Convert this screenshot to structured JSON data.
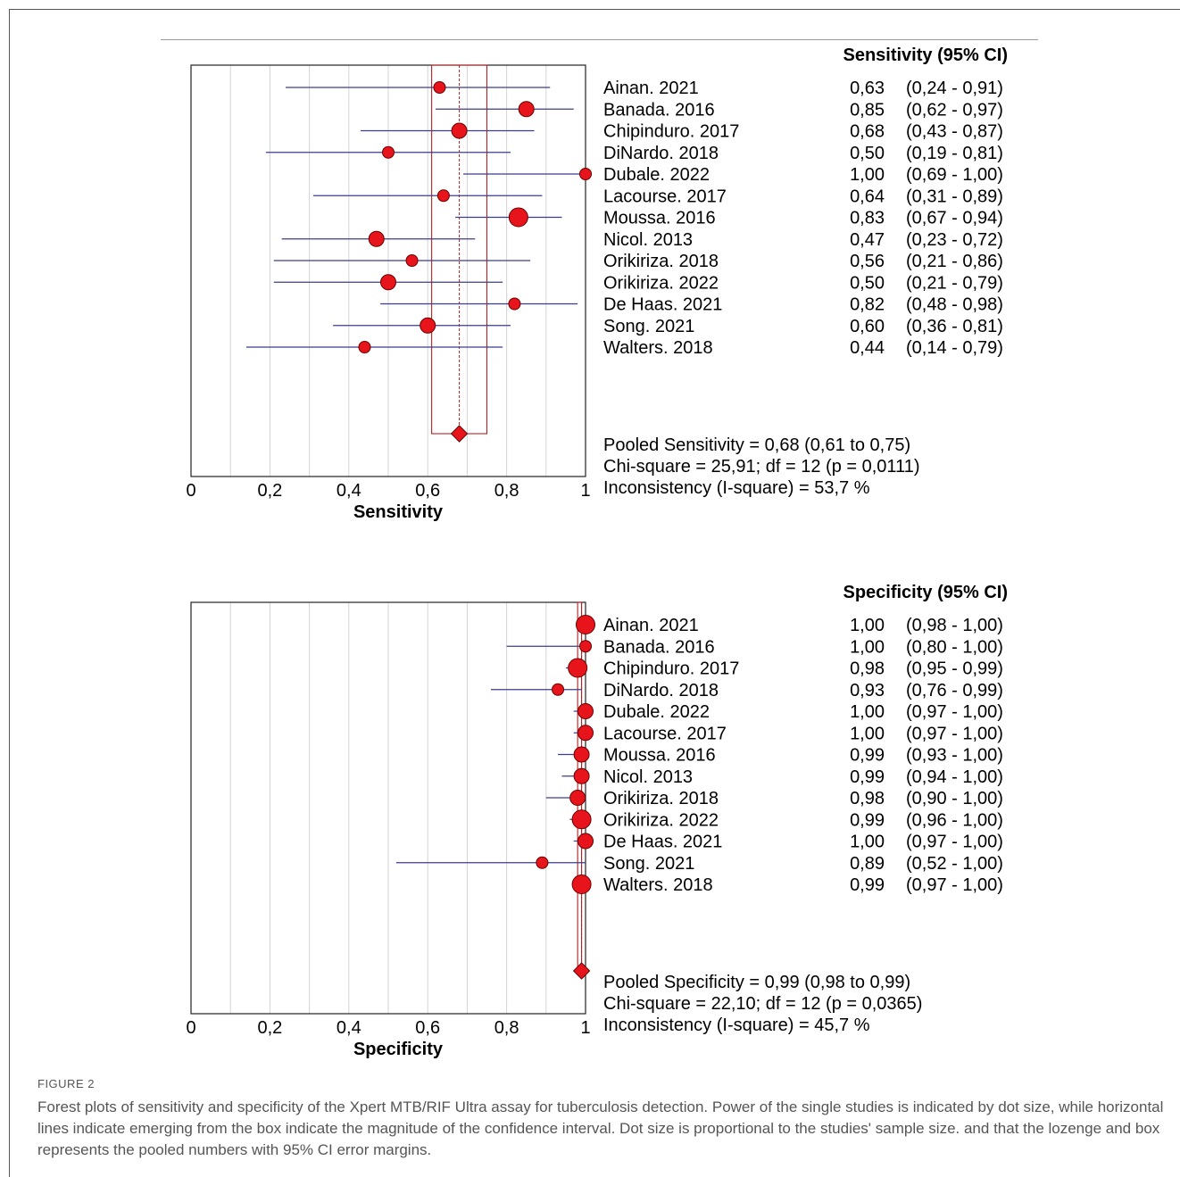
{
  "caption": {
    "label": "FIGURE 2",
    "text": "Forest plots of sensitivity and specificity of the Xpert MTB/RIF Ultra assay for tuberculosis detection. Power of the single studies is indicated by dot size, while horizontal lines indicate emerging from the box indicate the magnitude of the confidence interval. Dot size is proportional to the studies' sample size. and that the lozenge and box represents the pooled numbers with 95% CI error margins."
  },
  "colors": {
    "dot": "#e8141c",
    "dot_edge": "#6b0000",
    "ci_line": "#3c3c8c",
    "pooled_box": "#b22222",
    "grid": "#d4d4d4"
  },
  "chart_data": [
    {
      "type": "forest",
      "header": "Sensitivity (95% CI)",
      "xlabel": "Sensitivity",
      "xlim": [
        0,
        1
      ],
      "xticks": [
        "0",
        "0,2",
        "0,4",
        "0,6",
        "0,8",
        "1"
      ],
      "grid": true,
      "studies": [
        {
          "name": "Ainan. 2021",
          "estimate": 0.63,
          "lower": 0.24,
          "upper": 0.91,
          "est_label": "0,63",
          "ci_label": "(0,24 - 0,91)",
          "size": 1
        },
        {
          "name": "Banada. 2016",
          "estimate": 0.85,
          "lower": 0.62,
          "upper": 0.97,
          "est_label": "0,85",
          "ci_label": "(0,62 - 0,97)",
          "size": 2
        },
        {
          "name": "Chipinduro. 2017",
          "estimate": 0.68,
          "lower": 0.43,
          "upper": 0.87,
          "est_label": "0,68",
          "ci_label": "(0,43 - 0,87)",
          "size": 2
        },
        {
          "name": "DiNardo. 2018",
          "estimate": 0.5,
          "lower": 0.19,
          "upper": 0.81,
          "est_label": "0,50",
          "ci_label": "(0,19 - 0,81)",
          "size": 1
        },
        {
          "name": "Dubale. 2022",
          "estimate": 1.0,
          "lower": 0.69,
          "upper": 1.0,
          "est_label": "1,00",
          "ci_label": "(0,69 - 1,00)",
          "size": 1
        },
        {
          "name": "Lacourse. 2017",
          "estimate": 0.64,
          "lower": 0.31,
          "upper": 0.89,
          "est_label": "0,64",
          "ci_label": "(0,31 - 0,89)",
          "size": 1
        },
        {
          "name": "Moussa. 2016",
          "estimate": 0.83,
          "lower": 0.67,
          "upper": 0.94,
          "est_label": "0,83",
          "ci_label": "(0,67 - 0,94)",
          "size": 3
        },
        {
          "name": "Nicol. 2013",
          "estimate": 0.47,
          "lower": 0.23,
          "upper": 0.72,
          "est_label": "0,47",
          "ci_label": "(0,23 - 0,72)",
          "size": 2
        },
        {
          "name": "Orikiriza. 2018",
          "estimate": 0.56,
          "lower": 0.21,
          "upper": 0.86,
          "est_label": "0,56",
          "ci_label": "(0,21 - 0,86)",
          "size": 1
        },
        {
          "name": "Orikiriza. 2022",
          "estimate": 0.5,
          "lower": 0.21,
          "upper": 0.79,
          "est_label": "0,50",
          "ci_label": "(0,21 - 0,79)",
          "size": 2
        },
        {
          "name": "De Haas. 2021",
          "estimate": 0.82,
          "lower": 0.48,
          "upper": 0.98,
          "est_label": "0,82",
          "ci_label": "(0,48 - 0,98)",
          "size": 1
        },
        {
          "name": "Song. 2021",
          "estimate": 0.6,
          "lower": 0.36,
          "upper": 0.81,
          "est_label": "0,60",
          "ci_label": "(0,36 - 0,81)",
          "size": 2
        },
        {
          "name": "Walters. 2018",
          "estimate": 0.44,
          "lower": 0.14,
          "upper": 0.79,
          "est_label": "0,44",
          "ci_label": "(0,14 - 0,79)",
          "size": 1
        }
      ],
      "pooled": {
        "estimate": 0.68,
        "lower": 0.61,
        "upper": 0.75
      },
      "stats": [
        "Pooled Sensitivity = 0,68 (0,61 to 0,75)",
        "Chi-square = 25,91; df =  12 (p = 0,0111)",
        "Inconsistency (I-square) = 53,7 %"
      ]
    },
    {
      "type": "forest",
      "header": "Specificity (95% CI)",
      "xlabel": "Specificity",
      "xlim": [
        0,
        1
      ],
      "xticks": [
        "0",
        "0,2",
        "0,4",
        "0,6",
        "0,8",
        "1"
      ],
      "grid": true,
      "studies": [
        {
          "name": "Ainan. 2021",
          "estimate": 1.0,
          "lower": 0.98,
          "upper": 1.0,
          "est_label": "1,00",
          "ci_label": "(0,98 - 1,00)",
          "size": 3
        },
        {
          "name": "Banada. 2016",
          "estimate": 1.0,
          "lower": 0.8,
          "upper": 1.0,
          "est_label": "1,00",
          "ci_label": "(0,80 - 1,00)",
          "size": 1
        },
        {
          "name": "Chipinduro. 2017",
          "estimate": 0.98,
          "lower": 0.95,
          "upper": 0.99,
          "est_label": "0,98",
          "ci_label": "(0,95 - 0,99)",
          "size": 3
        },
        {
          "name": "DiNardo. 2018",
          "estimate": 0.93,
          "lower": 0.76,
          "upper": 0.99,
          "est_label": "0,93",
          "ci_label": "(0,76 - 0,99)",
          "size": 1
        },
        {
          "name": "Dubale. 2022",
          "estimate": 1.0,
          "lower": 0.97,
          "upper": 1.0,
          "est_label": "1,00",
          "ci_label": "(0,97 - 1,00)",
          "size": 2
        },
        {
          "name": "Lacourse. 2017",
          "estimate": 1.0,
          "lower": 0.97,
          "upper": 1.0,
          "est_label": "1,00",
          "ci_label": "(0,97 - 1,00)",
          "size": 2
        },
        {
          "name": "Moussa. 2016",
          "estimate": 0.99,
          "lower": 0.93,
          "upper": 1.0,
          "est_label": "0,99",
          "ci_label": "(0,93 - 1,00)",
          "size": 2
        },
        {
          "name": "Nicol. 2013",
          "estimate": 0.99,
          "lower": 0.94,
          "upper": 1.0,
          "est_label": "0,99",
          "ci_label": "(0,94 - 1,00)",
          "size": 2
        },
        {
          "name": "Orikiriza. 2018",
          "estimate": 0.98,
          "lower": 0.9,
          "upper": 1.0,
          "est_label": "0,98",
          "ci_label": "(0,90 - 1,00)",
          "size": 2
        },
        {
          "name": "Orikiriza. 2022",
          "estimate": 0.99,
          "lower": 0.96,
          "upper": 1.0,
          "est_label": "0,99",
          "ci_label": "(0,96 - 1,00)",
          "size": 3
        },
        {
          "name": "De Haas. 2021",
          "estimate": 1.0,
          "lower": 0.97,
          "upper": 1.0,
          "est_label": "1,00",
          "ci_label": "(0,97 - 1,00)",
          "size": 2
        },
        {
          "name": "Song. 2021",
          "estimate": 0.89,
          "lower": 0.52,
          "upper": 1.0,
          "est_label": "0,89",
          "ci_label": "(0,52 - 1,00)",
          "size": 1
        },
        {
          "name": "Walters. 2018",
          "estimate": 0.99,
          "lower": 0.97,
          "upper": 1.0,
          "est_label": "0,99",
          "ci_label": "(0,97 - 1,00)",
          "size": 3
        }
      ],
      "pooled": {
        "estimate": 0.99,
        "lower": 0.98,
        "upper": 0.99
      },
      "stats": [
        "Pooled Specificity = 0,99 (0,98 to 0,99)",
        "Chi-square = 22,10; df =  12 (p = 0,0365)",
        "Inconsistency (I-square) = 45,7 %"
      ]
    }
  ]
}
